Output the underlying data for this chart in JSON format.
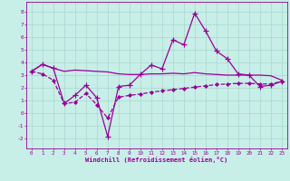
{
  "xlabel": "Windchill (Refroidissement éolien,°C)",
  "bg_color": "#c8eee8",
  "grid_color": "#a8d8cc",
  "line_color": "#990099",
  "xlim": [
    -0.5,
    23.5
  ],
  "ylim": [
    -2.8,
    8.8
  ],
  "xticks": [
    0,
    1,
    2,
    3,
    4,
    5,
    6,
    7,
    8,
    9,
    10,
    11,
    12,
    13,
    14,
    15,
    16,
    17,
    18,
    19,
    20,
    21,
    22,
    23
  ],
  "yticks": [
    -2,
    -1,
    0,
    1,
    2,
    3,
    4,
    5,
    6,
    7,
    8
  ],
  "line1_x": [
    0,
    1,
    2,
    3,
    4,
    5,
    6,
    7,
    8,
    9,
    10,
    11,
    12,
    13,
    14,
    15,
    16,
    17,
    18,
    19,
    20,
    21,
    22,
    23
  ],
  "line1_y": [
    3.3,
    3.85,
    3.55,
    3.3,
    3.4,
    3.35,
    3.3,
    3.25,
    3.1,
    3.05,
    3.05,
    3.1,
    3.1,
    3.15,
    3.1,
    3.2,
    3.1,
    3.05,
    3.0,
    3.0,
    3.0,
    3.0,
    2.95,
    2.6
  ],
  "line2_x": [
    0,
    1,
    2,
    3,
    4,
    5,
    6,
    7,
    8,
    9,
    10,
    11,
    12,
    13,
    14,
    15,
    16,
    17,
    18,
    19,
    20,
    21,
    22,
    23
  ],
  "line2_y": [
    3.3,
    3.85,
    3.55,
    0.75,
    1.4,
    2.2,
    1.2,
    -1.85,
    2.1,
    2.2,
    3.05,
    3.8,
    3.5,
    5.8,
    5.4,
    7.9,
    6.5,
    4.9,
    4.3,
    3.1,
    3.0,
    2.1,
    2.2,
    2.5
  ],
  "line3_x": [
    0,
    1,
    2,
    3,
    4,
    5,
    6,
    7,
    8,
    9,
    10,
    11,
    12,
    13,
    14,
    15,
    16,
    17,
    18,
    19,
    20,
    21,
    22,
    23
  ],
  "line3_y": [
    3.3,
    3.1,
    2.6,
    0.75,
    0.85,
    1.55,
    0.65,
    -0.4,
    1.25,
    1.4,
    1.5,
    1.65,
    1.75,
    1.85,
    1.95,
    2.05,
    2.15,
    2.25,
    2.3,
    2.35,
    2.35,
    2.3,
    2.3,
    2.5
  ]
}
